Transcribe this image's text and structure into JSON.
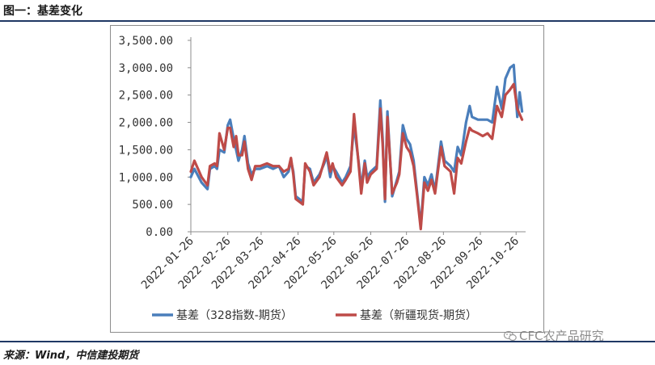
{
  "figure": {
    "title": "图一：基差变化",
    "source": "来源：Wind，中信建投期货",
    "watermark": "CFC农产品研究"
  },
  "chart_data": {
    "type": "line",
    "y_ticks": [
      "0.00",
      "500.00",
      "1,000.00",
      "1,500.00",
      "2,000.00",
      "2,500.00",
      "3,000.00",
      "3,500.00"
    ],
    "x_ticks": [
      "2022-01-26",
      "2022-02-26",
      "2022-03-26",
      "2022-04-26",
      "2022-05-26",
      "2022-06-26",
      "2022-07-26",
      "2022-08-26",
      "2022-09-26",
      "2022-10-26"
    ],
    "ylim": [
      0,
      3500
    ],
    "xlim": [
      "2022-01-26",
      "2022-11-03"
    ],
    "grid": false,
    "legend_position": "bottom",
    "series": [
      {
        "name": "基差（328指数-期货）",
        "color": "#4a7ebb",
        "points": [
          [
            "2022-01-26",
            1000
          ],
          [
            "2022-01-29",
            1150
          ],
          [
            "2022-02-04",
            900
          ],
          [
            "2022-02-09",
            780
          ],
          [
            "2022-02-11",
            1150
          ],
          [
            "2022-02-15",
            1200
          ],
          [
            "2022-02-17",
            1150
          ],
          [
            "2022-02-19",
            1500
          ],
          [
            "2022-02-23",
            1450
          ],
          [
            "2022-02-26",
            1950
          ],
          [
            "2022-02-28",
            2050
          ],
          [
            "2022-03-03",
            1700
          ],
          [
            "2022-03-05",
            1500
          ],
          [
            "2022-03-07",
            1300
          ],
          [
            "2022-03-10",
            1500
          ],
          [
            "2022-03-12",
            1750
          ],
          [
            "2022-03-15",
            1250
          ],
          [
            "2022-03-18",
            1050
          ],
          [
            "2022-03-21",
            1150
          ],
          [
            "2022-03-25",
            1150
          ],
          [
            "2022-03-31",
            1200
          ],
          [
            "2022-04-05",
            1150
          ],
          [
            "2022-04-10",
            1200
          ],
          [
            "2022-04-14",
            1000
          ],
          [
            "2022-04-18",
            1100
          ],
          [
            "2022-04-20",
            1300
          ],
          [
            "2022-04-22",
            1100
          ],
          [
            "2022-04-24",
            650
          ],
          [
            "2022-04-30",
            550
          ],
          [
            "2022-05-02",
            1200
          ],
          [
            "2022-05-06",
            1150
          ],
          [
            "2022-05-09",
            900
          ],
          [
            "2022-05-14",
            1050
          ],
          [
            "2022-05-18",
            1250
          ],
          [
            "2022-05-20",
            1400
          ],
          [
            "2022-05-23",
            1000
          ],
          [
            "2022-05-25",
            1200
          ],
          [
            "2022-05-28",
            1100
          ],
          [
            "2022-06-02",
            900
          ],
          [
            "2022-06-05",
            1000
          ],
          [
            "2022-06-09",
            1200
          ],
          [
            "2022-06-12",
            1950
          ],
          [
            "2022-06-16",
            1250
          ],
          [
            "2022-06-18",
            800
          ],
          [
            "2022-06-21",
            1300
          ],
          [
            "2022-06-23",
            1000
          ],
          [
            "2022-06-26",
            1100
          ],
          [
            "2022-07-01",
            1200
          ],
          [
            "2022-07-04",
            2400
          ],
          [
            "2022-07-06",
            1700
          ],
          [
            "2022-07-08",
            550
          ],
          [
            "2022-07-10",
            2200
          ],
          [
            "2022-07-14",
            650
          ],
          [
            "2022-07-18",
            950
          ],
          [
            "2022-07-20",
            1100
          ],
          [
            "2022-07-23",
            1950
          ],
          [
            "2022-07-26",
            1700
          ],
          [
            "2022-07-29",
            1600
          ],
          [
            "2022-08-01",
            1300
          ],
          [
            "2022-08-04",
            700
          ],
          [
            "2022-08-07",
            100
          ],
          [
            "2022-08-10",
            1000
          ],
          [
            "2022-08-13",
            850
          ],
          [
            "2022-08-16",
            1050
          ],
          [
            "2022-08-19",
            750
          ],
          [
            "2022-08-24",
            1650
          ],
          [
            "2022-08-27",
            1300
          ],
          [
            "2022-09-01",
            1200
          ],
          [
            "2022-09-04",
            1100
          ],
          [
            "2022-09-07",
            1550
          ],
          [
            "2022-09-10",
            1400
          ],
          [
            "2022-09-14",
            2000
          ],
          [
            "2022-09-17",
            2300
          ],
          [
            "2022-09-19",
            2100
          ],
          [
            "2022-09-24",
            2050
          ],
          [
            "2022-09-28",
            2050
          ],
          [
            "2022-10-02",
            2050
          ],
          [
            "2022-10-06",
            2000
          ],
          [
            "2022-10-10",
            2650
          ],
          [
            "2022-10-14",
            2250
          ],
          [
            "2022-10-17",
            2800
          ],
          [
            "2022-10-21",
            3000
          ],
          [
            "2022-10-24",
            3050
          ],
          [
            "2022-10-27",
            2100
          ],
          [
            "2022-10-29",
            2550
          ],
          [
            "2022-10-31",
            2200
          ]
        ]
      },
      {
        "name": "基差（新疆现货-期货）",
        "color": "#be4b48",
        "points": [
          [
            "2022-01-26",
            1100
          ],
          [
            "2022-01-29",
            1300
          ],
          [
            "2022-02-04",
            1000
          ],
          [
            "2022-02-09",
            850
          ],
          [
            "2022-02-11",
            1200
          ],
          [
            "2022-02-15",
            1250
          ],
          [
            "2022-02-17",
            1200
          ],
          [
            "2022-02-19",
            1800
          ],
          [
            "2022-02-23",
            1500
          ],
          [
            "2022-02-26",
            1900
          ],
          [
            "2022-02-28",
            1900
          ],
          [
            "2022-03-03",
            1550
          ],
          [
            "2022-03-05",
            1750
          ],
          [
            "2022-03-07",
            1400
          ],
          [
            "2022-03-10",
            1400
          ],
          [
            "2022-03-12",
            1650
          ],
          [
            "2022-03-15",
            1150
          ],
          [
            "2022-03-18",
            950
          ],
          [
            "2022-03-21",
            1200
          ],
          [
            "2022-03-25",
            1200
          ],
          [
            "2022-03-31",
            1250
          ],
          [
            "2022-04-05",
            1200
          ],
          [
            "2022-04-10",
            1200
          ],
          [
            "2022-04-14",
            1100
          ],
          [
            "2022-04-18",
            1150
          ],
          [
            "2022-04-20",
            1350
          ],
          [
            "2022-04-22",
            1050
          ],
          [
            "2022-04-24",
            600
          ],
          [
            "2022-04-30",
            500
          ],
          [
            "2022-05-02",
            1250
          ],
          [
            "2022-05-06",
            1100
          ],
          [
            "2022-05-09",
            850
          ],
          [
            "2022-05-14",
            1000
          ],
          [
            "2022-05-18",
            1300
          ],
          [
            "2022-05-20",
            1450
          ],
          [
            "2022-05-23",
            1100
          ],
          [
            "2022-05-25",
            1250
          ],
          [
            "2022-05-28",
            1000
          ],
          [
            "2022-06-02",
            850
          ],
          [
            "2022-06-05",
            950
          ],
          [
            "2022-06-09",
            1100
          ],
          [
            "2022-06-12",
            2150
          ],
          [
            "2022-06-16",
            1200
          ],
          [
            "2022-06-18",
            700
          ],
          [
            "2022-06-21",
            1250
          ],
          [
            "2022-06-23",
            900
          ],
          [
            "2022-06-26",
            1050
          ],
          [
            "2022-07-01",
            1150
          ],
          [
            "2022-07-04",
            2250
          ],
          [
            "2022-07-06",
            1600
          ],
          [
            "2022-07-08",
            600
          ],
          [
            "2022-07-10",
            2100
          ],
          [
            "2022-07-14",
            700
          ],
          [
            "2022-07-18",
            900
          ],
          [
            "2022-07-20",
            1050
          ],
          [
            "2022-07-23",
            1800
          ],
          [
            "2022-07-26",
            1550
          ],
          [
            "2022-07-29",
            1450
          ],
          [
            "2022-08-01",
            1200
          ],
          [
            "2022-08-04",
            650
          ],
          [
            "2022-08-07",
            50
          ],
          [
            "2022-08-10",
            900
          ],
          [
            "2022-08-13",
            750
          ],
          [
            "2022-08-16",
            950
          ],
          [
            "2022-08-19",
            700
          ],
          [
            "2022-08-24",
            1550
          ],
          [
            "2022-08-27",
            1200
          ],
          [
            "2022-09-01",
            1100
          ],
          [
            "2022-09-04",
            700
          ],
          [
            "2022-09-07",
            1350
          ],
          [
            "2022-09-10",
            1250
          ],
          [
            "2022-09-14",
            1650
          ],
          [
            "2022-09-17",
            1900
          ],
          [
            "2022-09-19",
            1850
          ],
          [
            "2022-09-24",
            1800
          ],
          [
            "2022-09-28",
            1750
          ],
          [
            "2022-10-02",
            1800
          ],
          [
            "2022-10-06",
            1700
          ],
          [
            "2022-10-10",
            2300
          ],
          [
            "2022-10-14",
            2100
          ],
          [
            "2022-10-17",
            2500
          ],
          [
            "2022-10-21",
            2600
          ],
          [
            "2022-10-24",
            2700
          ],
          [
            "2022-10-27",
            2250
          ],
          [
            "2022-10-29",
            2150
          ],
          [
            "2022-10-31",
            2050
          ]
        ]
      }
    ]
  }
}
